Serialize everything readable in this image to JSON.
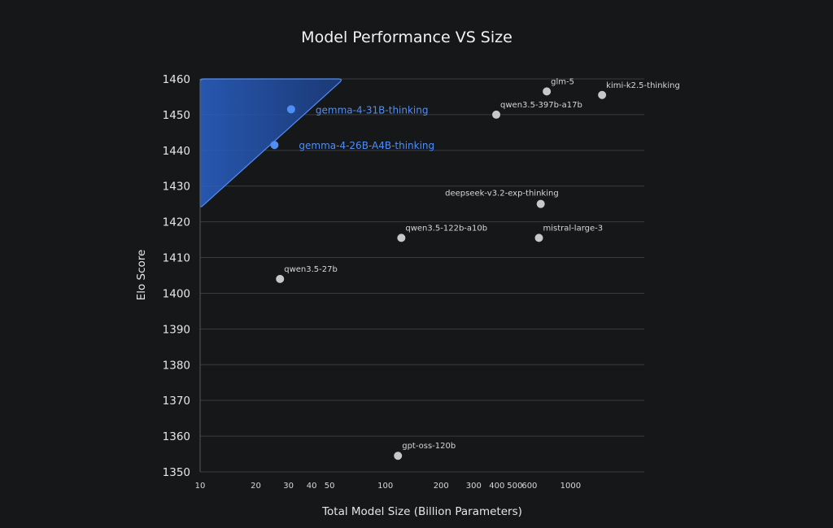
{
  "chart_data": {
    "type": "scatter",
    "title": "Model Performance VS Size",
    "xlabel": "Total Model Size (Billion Parameters)",
    "ylabel": "Elo Score",
    "xscale": "log",
    "xlim": [
      10,
      2500
    ],
    "ylim": [
      1350,
      1460
    ],
    "grid": true,
    "xticks": [
      {
        "value": 10,
        "label": "10"
      },
      {
        "value": 20,
        "label": "20"
      },
      {
        "value": 30,
        "label": "30"
      },
      {
        "value": 40,
        "label": "40"
      },
      {
        "value": 50,
        "label": "50"
      },
      {
        "value": 100,
        "label": "100"
      },
      {
        "value": 200,
        "label": "200"
      },
      {
        "value": 300,
        "label": "300"
      },
      {
        "value": 400,
        "label": "400"
      },
      {
        "value": 500,
        "label": "500"
      },
      {
        "value": 600,
        "label": "600"
      },
      {
        "value": 1000,
        "label": "1000"
      }
    ],
    "yticks": [
      1350,
      1360,
      1370,
      1380,
      1390,
      1400,
      1410,
      1420,
      1430,
      1440,
      1450,
      1460
    ],
    "colors": {
      "highlight": "#4f8ef5",
      "point": "#c8c8c8",
      "region_fill": "#2f6fe0",
      "region_stroke": "#4f8ef5",
      "background": "#161719"
    },
    "highlight_region": {
      "vertices": [
        [
          10,
          1460
        ],
        [
          58,
          1460
        ],
        [
          10,
          1424
        ]
      ]
    },
    "points": [
      {
        "label": "gemma-4-31B-thinking",
        "x": 31,
        "y": 1451.5,
        "highlight": true,
        "label_pos": "right"
      },
      {
        "label": "gemma-4-26B-A4B-thinking",
        "x": 25.2,
        "y": 1441.5,
        "highlight": true,
        "label_pos": "right"
      },
      {
        "label": "glm-5",
        "x": 744,
        "y": 1456.5,
        "highlight": false,
        "label_pos": "top-right"
      },
      {
        "label": "kimi-k2.5-thinking",
        "x": 1480,
        "y": 1455.5,
        "highlight": false,
        "label_pos": "top-right"
      },
      {
        "label": "qwen3.5-397b-a17b",
        "x": 397,
        "y": 1450,
        "highlight": false,
        "label_pos": "top-right"
      },
      {
        "label": "deepseek-v3.2-exp-thinking",
        "x": 690,
        "y": 1425,
        "highlight": false,
        "label_pos": "top-left"
      },
      {
        "label": "qwen3.5-122b-a10b",
        "x": 122,
        "y": 1415.5,
        "highlight": false,
        "label_pos": "top-right"
      },
      {
        "label": "mistral-large-3",
        "x": 675,
        "y": 1415.5,
        "highlight": false,
        "label_pos": "top-right"
      },
      {
        "label": "qwen3.5-27b",
        "x": 27,
        "y": 1404,
        "highlight": false,
        "label_pos": "top-right"
      },
      {
        "label": "gpt-oss-120b",
        "x": 117,
        "y": 1354.5,
        "highlight": false,
        "label_pos": "top-right"
      }
    ]
  }
}
